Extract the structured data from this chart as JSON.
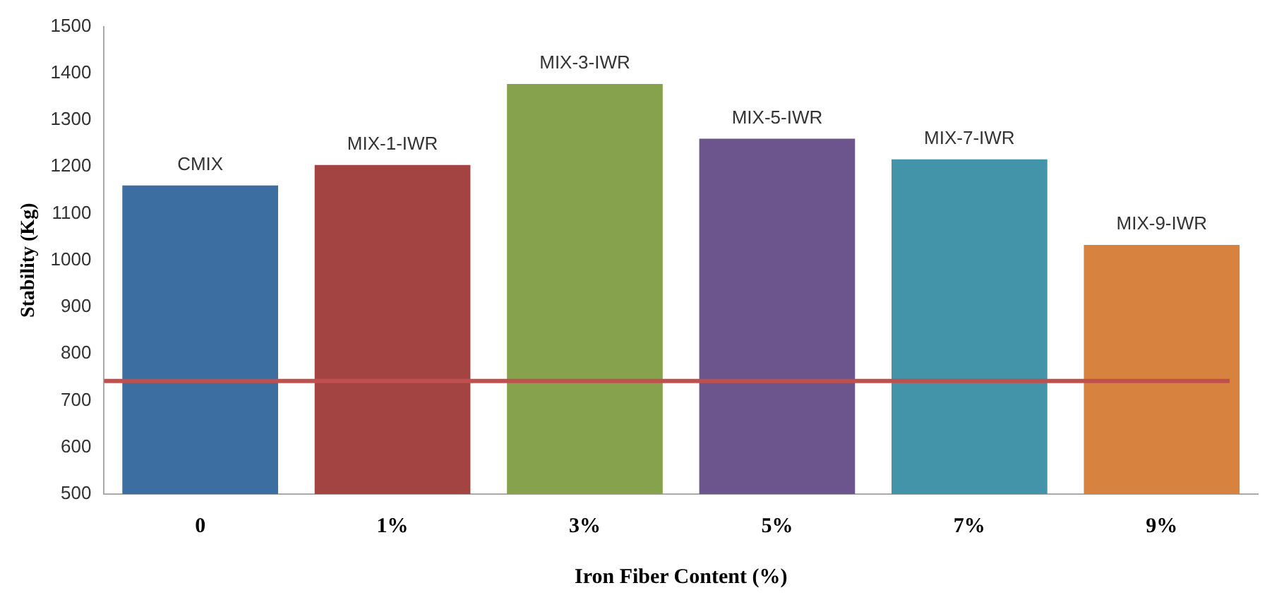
{
  "chart_data": {
    "type": "bar",
    "xlabel": "Iron Fiber Content (%)",
    "ylabel": "Stability (Kg)",
    "categories": [
      "0",
      "1%",
      "3%",
      "5%",
      "7%",
      "9%"
    ],
    "values": [
      1160,
      1204,
      1377,
      1260,
      1216,
      1033
    ],
    "colors": [
      "#3c6ea2",
      "#a34442",
      "#86a24c",
      "#6b558c",
      "#4393a9",
      "#d8823f"
    ],
    "ylim": [
      500,
      1500
    ],
    "yticks": [
      500,
      600,
      700,
      800,
      900,
      1000,
      1100,
      1200,
      1300,
      1400,
      1500
    ],
    "grid": false,
    "legend": false,
    "ref_lines": [
      {
        "axis": "y",
        "value": 742,
        "color": "#c0504d"
      }
    ],
    "annotations": [
      {
        "text": "CMIX",
        "x": "0",
        "y": 1160
      },
      {
        "text": "MIX-1-IWR",
        "x": "1%",
        "y": 1204
      },
      {
        "text": "MIX-3-IWR",
        "x": "3%",
        "y": 1377
      },
      {
        "text": "MIX-5-IWR",
        "x": "5%",
        "y": 1260
      },
      {
        "text": "MIX-7-IWR",
        "x": "7%",
        "y": 1216
      },
      {
        "text": "MIX-9-IWR",
        "x": "9%",
        "y": 1033
      }
    ]
  }
}
